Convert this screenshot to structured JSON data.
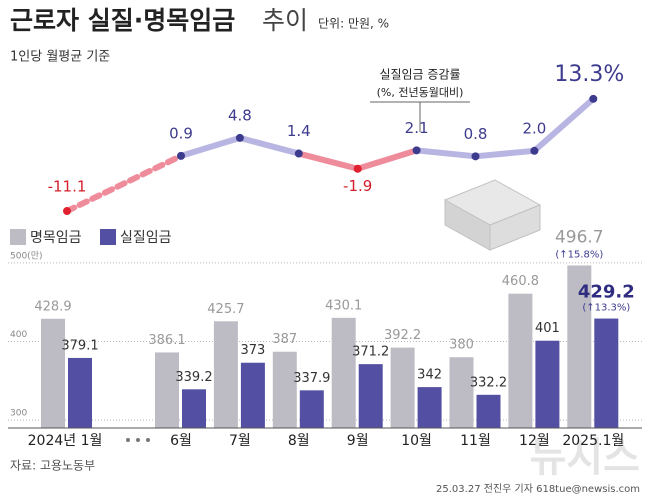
{
  "header": {
    "title": "근로자 실질·명목임금",
    "title_suffix": "추이",
    "unit": "단위: 만원, %",
    "subtitle": "1인당 월평균 기준"
  },
  "chart_data": [
    {
      "type": "line",
      "annotation": [
        "실질임금 증감률",
        "(%, 전년동월대비)"
      ],
      "values": [
        -11.1,
        0.9,
        4.8,
        1.4,
        -1.9,
        2.1,
        0.8,
        2.0,
        13.3
      ],
      "value_labels": [
        "-11.1",
        "0.9",
        "4.8",
        "1.4",
        "-1.9",
        "2.1",
        "0.8",
        "2.0",
        "13.3%"
      ],
      "ylim": [
        -15,
        20
      ],
      "color": "#b9b5e2",
      "negative_color": "#ef8c9b",
      "point_color": "#3d3b8e",
      "negative_point_color": "#e0202e"
    },
    {
      "type": "bar",
      "categories": [
        "2024년 1월",
        "6월",
        "7월",
        "8월",
        "9월",
        "10월",
        "11월",
        "12월",
        "2025.1월"
      ],
      "series": [
        {
          "name": "명목임금",
          "color": "#bdbcc4",
          "values": [
            428.9,
            386.1,
            425.7,
            387,
            430.1,
            392.2,
            380,
            460.8,
            496.7
          ]
        },
        {
          "name": "실질임금",
          "color": "#5350a3",
          "values": [
            379.1,
            339.2,
            373,
            337.9,
            371.2,
            342,
            332.2,
            401,
            429.2
          ]
        }
      ],
      "annotations": [
        "(↑15.8%)",
        "(↑13.3%)"
      ],
      "ylim": [
        290,
        510
      ],
      "yticks": [
        {
          "value": 500,
          "label": "500(만)"
        },
        400,
        300
      ],
      "grid": true
    }
  ],
  "footer": {
    "source": "자료: 고용노동부",
    "credit": "25.03.27 전진우 기자 618tue@newsis.com",
    "watermark": "뉴시스"
  }
}
